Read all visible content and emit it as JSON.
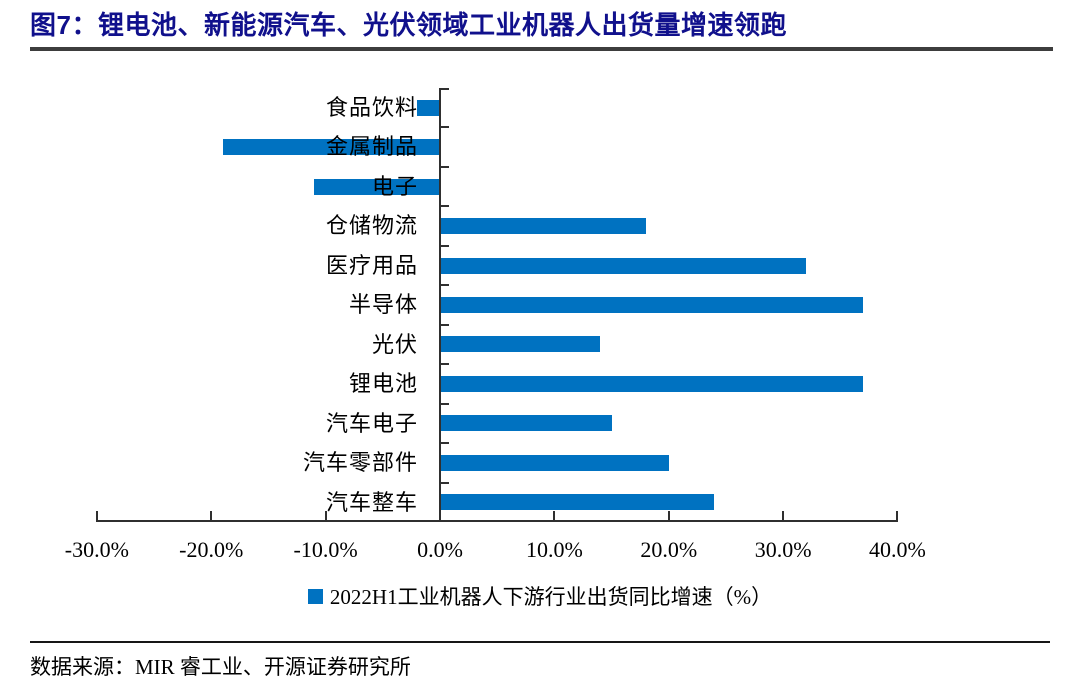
{
  "title": "图7：锂电池、新能源汽车、光伏领域工业机器人出货量增速领跑",
  "chart_data": {
    "type": "bar",
    "orientation": "horizontal",
    "title": "图7：锂电池、新能源汽车、光伏领域工业机器人出货量增速领跑",
    "categories": [
      "食品饮料",
      "金属制品",
      "电子",
      "仓储物流",
      "医疗用品",
      "半导体",
      "光伏",
      "锂电池",
      "汽车电子",
      "汽车零部件",
      "汽车整车"
    ],
    "values": [
      -2,
      -19,
      -11,
      18,
      32,
      37,
      14,
      37,
      15,
      20,
      24
    ],
    "unit": "%",
    "x_ticks": [
      "-30.0%",
      "-20.0%",
      "-10.0%",
      "0.0%",
      "10.0%",
      "20.0%",
      "30.0%",
      "40.0%"
    ],
    "xlim": [
      -30,
      40
    ],
    "grid": false,
    "legend_position": "bottom",
    "legend": "2022H1工业机器人下游行业出货同比增速（%）",
    "bar_color": "#0072C1"
  },
  "colors": {
    "bar": "#0072C1",
    "title": "#10108C",
    "axis": "#2f2f2f"
  },
  "footer": {
    "source": "数据来源：MIR 睿工业、开源证券研究所"
  }
}
